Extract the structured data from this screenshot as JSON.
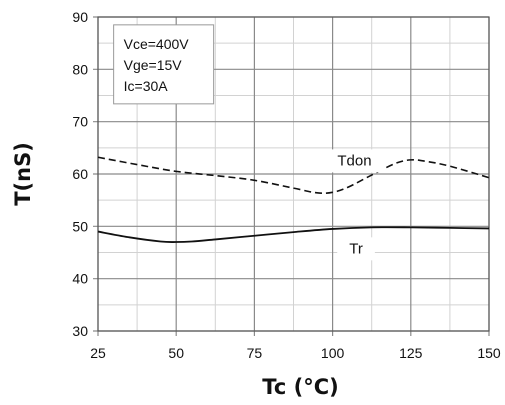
{
  "chart_data": {
    "type": "line",
    "xlabel": "Tc (°C)",
    "ylabel": "T(nS)",
    "xlim": [
      25,
      150
    ],
    "ylim": [
      30,
      90
    ],
    "xticks": [
      25,
      50,
      75,
      100,
      125,
      150
    ],
    "yticks": [
      30,
      40,
      50,
      60,
      70,
      80,
      90
    ],
    "xtick_labels": [
      "25",
      "50",
      "75",
      "100",
      "125",
      "150"
    ],
    "ytick_labels": [
      "30",
      "40",
      "50",
      "60",
      "70",
      "80",
      "90"
    ],
    "x_minor_step": 12.5,
    "y_minor_step": 5,
    "grid": true,
    "conditions": [
      "Vce=400V",
      "Vge=15V",
      "Ic=30A"
    ],
    "series": [
      {
        "name": "Tdon",
        "style": "dashed",
        "x": [
          25,
          37.5,
          50,
          62.5,
          75,
          87.5,
          95,
          100,
          105,
          112.5,
          120,
          125,
          130,
          137.5,
          150
        ],
        "y": [
          63.2,
          61.8,
          60.5,
          59.7,
          58.8,
          57.3,
          56.4,
          56.5,
          57.5,
          59.8,
          62.0,
          62.7,
          62.4,
          61.5,
          59.3
        ],
        "label_at": [
          107,
          62.4
        ]
      },
      {
        "name": "Tr",
        "style": "solid",
        "x": [
          25,
          35,
          45,
          50,
          55,
          62.5,
          75,
          87.5,
          100,
          112.5,
          125,
          137.5,
          150
        ],
        "y": [
          49.0,
          47.9,
          47.1,
          47.0,
          47.1,
          47.5,
          48.2,
          48.9,
          49.5,
          49.8,
          49.8,
          49.7,
          49.6
        ],
        "label_at": [
          107.5,
          45.6
        ]
      }
    ]
  }
}
